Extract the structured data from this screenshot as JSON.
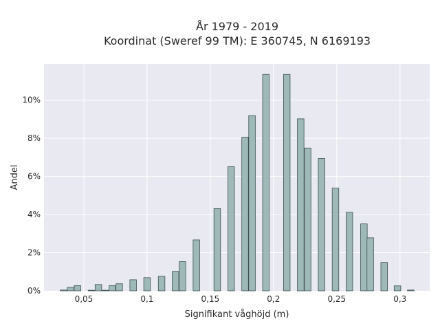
{
  "title_line1": "År 1979 - 2019",
  "title_line2": "Koordinat (Sweref 99 TM): E 360745, N 6169193",
  "colors": {
    "plot_background": "#e9e9f1",
    "grid": "#ffffff",
    "bar_fill": "#9fb8b8",
    "bar_stroke": "#3d4f4f"
  },
  "chart_data": {
    "type": "bar",
    "title": "År 1979 - 2019 / Koordinat (Sweref 99 TM): E 360745, N 6169193",
    "xlabel": "Signifikant våghöjd (m)",
    "ylabel": "Andel",
    "xlim": [
      0.0185,
      0.3235
    ],
    "ylim": [
      0,
      0.119
    ],
    "grid": true,
    "x_ticks": [
      0.05,
      0.1,
      0.15,
      0.2,
      0.25,
      0.3
    ],
    "x_tick_labels": [
      "0,05",
      "0,1",
      "0,15",
      "0,2",
      "0,25",
      "0,3"
    ],
    "y_ticks": [
      0,
      0.02,
      0.04,
      0.06,
      0.08,
      0.1
    ],
    "y_tick_labels": [
      "0%",
      "2%",
      "4%",
      "6%",
      "8%",
      "10%"
    ],
    "bar_width": 0.0052,
    "x": [
      0.034,
      0.0395,
      0.045,
      0.056,
      0.0615,
      0.067,
      0.0725,
      0.078,
      0.089,
      0.1,
      0.1115,
      0.1225,
      0.128,
      0.139,
      0.1555,
      0.1665,
      0.1775,
      0.183,
      0.194,
      0.2105,
      0.2215,
      0.227,
      0.238,
      0.249,
      0.26,
      0.2715,
      0.2765,
      0.2875,
      0.298,
      0.3085
    ],
    "values": [
      0.0004,
      0.0018,
      0.0027,
      0.0003,
      0.0033,
      0.0003,
      0.0027,
      0.0037,
      0.0058,
      0.0069,
      0.0076,
      0.0102,
      0.0153,
      0.0267,
      0.0431,
      0.0651,
      0.0806,
      0.0919,
      0.1135,
      0.1135,
      0.0902,
      0.0749,
      0.0694,
      0.0539,
      0.0412,
      0.0351,
      0.0278,
      0.0149,
      0.0026,
      0.0004
    ]
  }
}
